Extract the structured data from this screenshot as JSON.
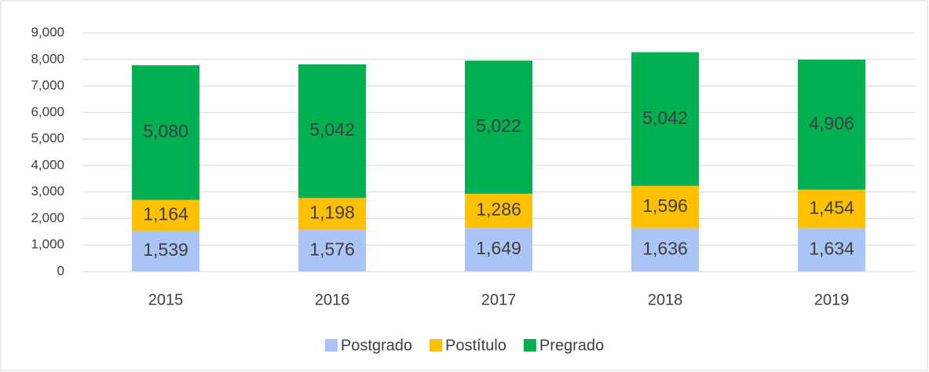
{
  "chart_data": {
    "type": "stacked_bar",
    "categories": [
      "2015",
      "2016",
      "2017",
      "2018",
      "2019"
    ],
    "series": [
      {
        "name": "Postgrado",
        "color": "#a9c4f5",
        "values": [
          1539,
          1576,
          1649,
          1636,
          1634
        ],
        "value_labels": [
          "1,539",
          "1,576",
          "1,649",
          "1,636",
          "1,634"
        ]
      },
      {
        "name": "Postítulo",
        "color": "#ffc000",
        "values": [
          1164,
          1198,
          1286,
          1596,
          1454
        ],
        "value_labels": [
          "1,164",
          "1,198",
          "1,286",
          "1,596",
          "1,454"
        ]
      },
      {
        "name": "Pregrado",
        "color": "#00b050",
        "values": [
          5080,
          5042,
          5022,
          5042,
          4906
        ],
        "value_labels": [
          "5,080",
          "5,042",
          "5,022",
          "5,042",
          "4,906"
        ]
      }
    ],
    "ylim": [
      0,
      9000
    ],
    "yticks": [
      0,
      {
        "value": 1000,
        "label": "1,000"
      },
      {
        "value": 2000,
        "label": "2,000"
      },
      {
        "value": 3000,
        "label": "3,000"
      },
      {
        "value": 4000,
        "label": "4,000"
      },
      {
        "value": 5000,
        "label": "5,000"
      },
      {
        "value": 6000,
        "label": "6,000"
      },
      {
        "value": 7000,
        "label": "7,000"
      },
      {
        "value": 8000,
        "label": "8,000"
      },
      {
        "value": 9000,
        "label": "9,000"
      }
    ],
    "grid": true,
    "legend": "bottom"
  }
}
